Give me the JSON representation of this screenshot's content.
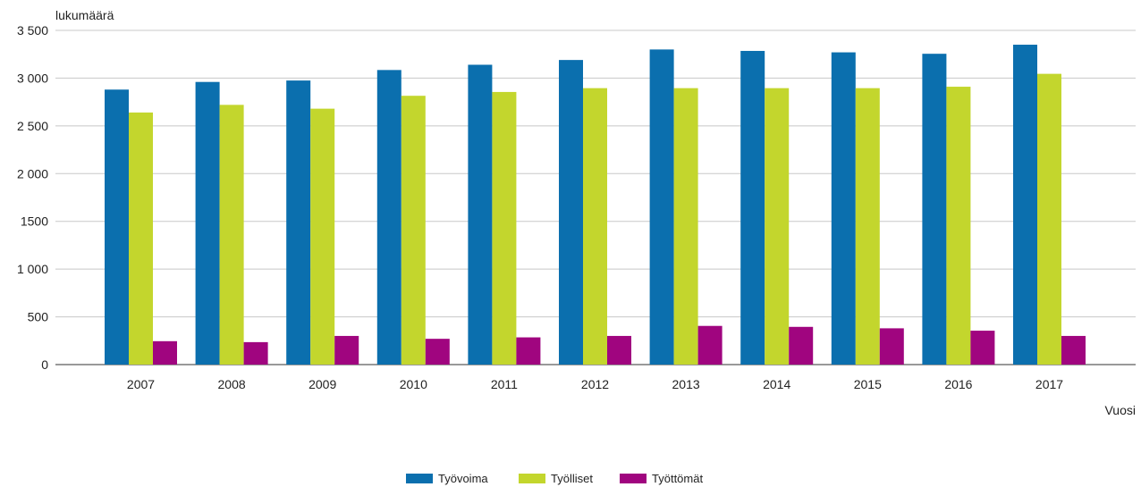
{
  "chart_data": {
    "type": "bar",
    "ylabel": "lukumäärä",
    "xlabel": "Vuosi",
    "ylim": [
      0,
      3500
    ],
    "yticks": [
      0,
      500,
      1000,
      1500,
      2000,
      2500,
      3000,
      3500
    ],
    "ytick_labels": [
      "0",
      "500",
      "1 000",
      "1500",
      "2 000",
      "2 500",
      "3 000",
      "3 500"
    ],
    "grid": true,
    "legend_position": "bottom-center",
    "categories": [
      "2007",
      "2008",
      "2009",
      "2010",
      "2011",
      "2012",
      "2013",
      "2014",
      "2015",
      "2016",
      "2017"
    ],
    "series": [
      {
        "name": "Työvoima",
        "color": "#0b6fae",
        "values": [
          2880,
          2960,
          2975,
          3085,
          3140,
          3190,
          3300,
          3285,
          3270,
          3255,
          3350
        ]
      },
      {
        "name": "Työlliset",
        "color": "#c3d62d",
        "values": [
          2640,
          2720,
          2680,
          2815,
          2855,
          2895,
          2895,
          2895,
          2895,
          2910,
          3045
        ]
      },
      {
        "name": "Työttömät",
        "color": "#a0057f",
        "values": [
          245,
          235,
          300,
          270,
          285,
          300,
          405,
          395,
          380,
          355,
          300
        ]
      }
    ]
  }
}
